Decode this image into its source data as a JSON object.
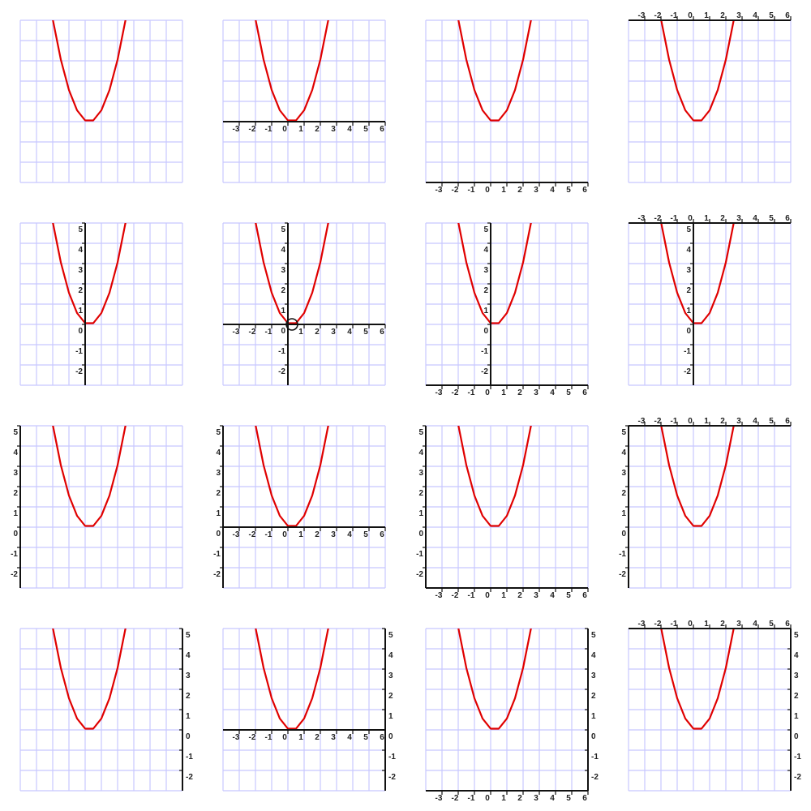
{
  "colors": {
    "grid": "#c8c8ff",
    "curve": "#e00000",
    "axis": "#111111",
    "background": "#ffffff"
  },
  "chart_data": {
    "type": "line",
    "grid": true,
    "xlim": [
      -4,
      6
    ],
    "ylim": [
      -3,
      5
    ],
    "x_ticks": [
      "-3",
      "-2",
      "-1",
      "0",
      "1",
      "2",
      "3",
      "4",
      "5",
      "6"
    ],
    "y_ticks": [
      "5",
      "4",
      "3",
      "2",
      "1",
      "0",
      "-1",
      "-2"
    ],
    "series": [
      {
        "x": [
          -2.0,
          -1.5,
          -1.0,
          -0.5,
          0.0,
          0.5,
          1.0,
          1.5,
          2.0,
          2.5
        ],
        "y": [
          5.06,
          3.06,
          1.56,
          0.56,
          0.06,
          0.06,
          0.56,
          1.56,
          3.06,
          5.06
        ]
      }
    ],
    "highlight_point": [
      0.25,
      0
    ],
    "panels": [
      {
        "x_axis": "none",
        "y_axis": "none"
      },
      {
        "x_axis": "center",
        "y_axis": "none"
      },
      {
        "x_axis": "bottom",
        "y_axis": "none"
      },
      {
        "x_axis": "top",
        "y_axis": "none"
      },
      {
        "x_axis": "none",
        "y_axis": "center"
      },
      {
        "x_axis": "center",
        "y_axis": "center",
        "highlight": true
      },
      {
        "x_axis": "bottom",
        "y_axis": "center"
      },
      {
        "x_axis": "top",
        "y_axis": "center"
      },
      {
        "x_axis": "none",
        "y_axis": "left"
      },
      {
        "x_axis": "center",
        "y_axis": "left"
      },
      {
        "x_axis": "bottom",
        "y_axis": "left"
      },
      {
        "x_axis": "top",
        "y_axis": "left"
      },
      {
        "x_axis": "none",
        "y_axis": "right"
      },
      {
        "x_axis": "center",
        "y_axis": "right"
      },
      {
        "x_axis": "bottom",
        "y_axis": "right"
      },
      {
        "x_axis": "top",
        "y_axis": "right"
      }
    ]
  }
}
